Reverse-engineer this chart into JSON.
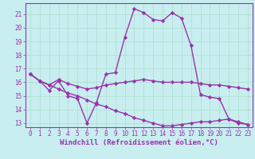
{
  "title": "",
  "xlabel": "Windchill (Refroidissement éolien,°C)",
  "ylabel": "",
  "background_color": "#c8eef0",
  "grid_color": "#aaddcc",
  "line_color": "#9933aa",
  "spine_color": "#9933aa",
  "xlim": [
    -0.5,
    23.5
  ],
  "ylim": [
    12.7,
    21.8
  ],
  "xticks": [
    0,
    1,
    2,
    3,
    4,
    5,
    6,
    7,
    8,
    9,
    10,
    11,
    12,
    13,
    14,
    15,
    16,
    17,
    18,
    19,
    20,
    21,
    22,
    23
  ],
  "yticks": [
    13,
    14,
    15,
    16,
    17,
    18,
    19,
    20,
    21
  ],
  "line1_x": [
    0,
    1,
    2,
    3,
    4,
    5,
    6,
    7,
    8,
    9,
    10,
    11,
    12,
    13,
    14,
    15,
    16,
    17,
    18,
    19,
    20,
    21,
    22,
    23
  ],
  "line1_y": [
    16.6,
    16.1,
    15.4,
    16.1,
    15.0,
    14.8,
    13.0,
    14.5,
    16.6,
    16.7,
    19.3,
    21.4,
    21.1,
    20.6,
    20.5,
    21.1,
    20.7,
    18.7,
    15.1,
    14.9,
    14.8,
    13.3,
    13.0,
    12.9
  ],
  "line2_x": [
    0,
    1,
    2,
    3,
    4,
    5,
    6,
    7,
    8,
    9,
    10,
    11,
    12,
    13,
    14,
    15,
    16,
    17,
    18,
    19,
    20,
    21,
    22,
    23
  ],
  "line2_y": [
    16.6,
    16.1,
    15.8,
    16.2,
    15.9,
    15.7,
    15.5,
    15.6,
    15.8,
    15.9,
    16.0,
    16.1,
    16.2,
    16.1,
    16.0,
    16.0,
    16.0,
    16.0,
    15.9,
    15.8,
    15.8,
    15.7,
    15.6,
    15.5
  ],
  "line3_x": [
    0,
    1,
    2,
    3,
    4,
    5,
    6,
    7,
    8,
    9,
    10,
    11,
    12,
    13,
    14,
    15,
    16,
    17,
    18,
    19,
    20,
    21,
    22,
    23
  ],
  "line3_y": [
    16.6,
    16.1,
    15.8,
    15.5,
    15.2,
    15.0,
    14.7,
    14.4,
    14.2,
    13.9,
    13.7,
    13.4,
    13.2,
    13.0,
    12.8,
    12.8,
    12.9,
    13.0,
    13.1,
    13.1,
    13.2,
    13.3,
    13.1,
    12.9
  ],
  "marker": "D",
  "marker_size": 2.2,
  "line_width": 1.0,
  "tick_fontsize": 5.5,
  "label_fontsize": 6.5
}
